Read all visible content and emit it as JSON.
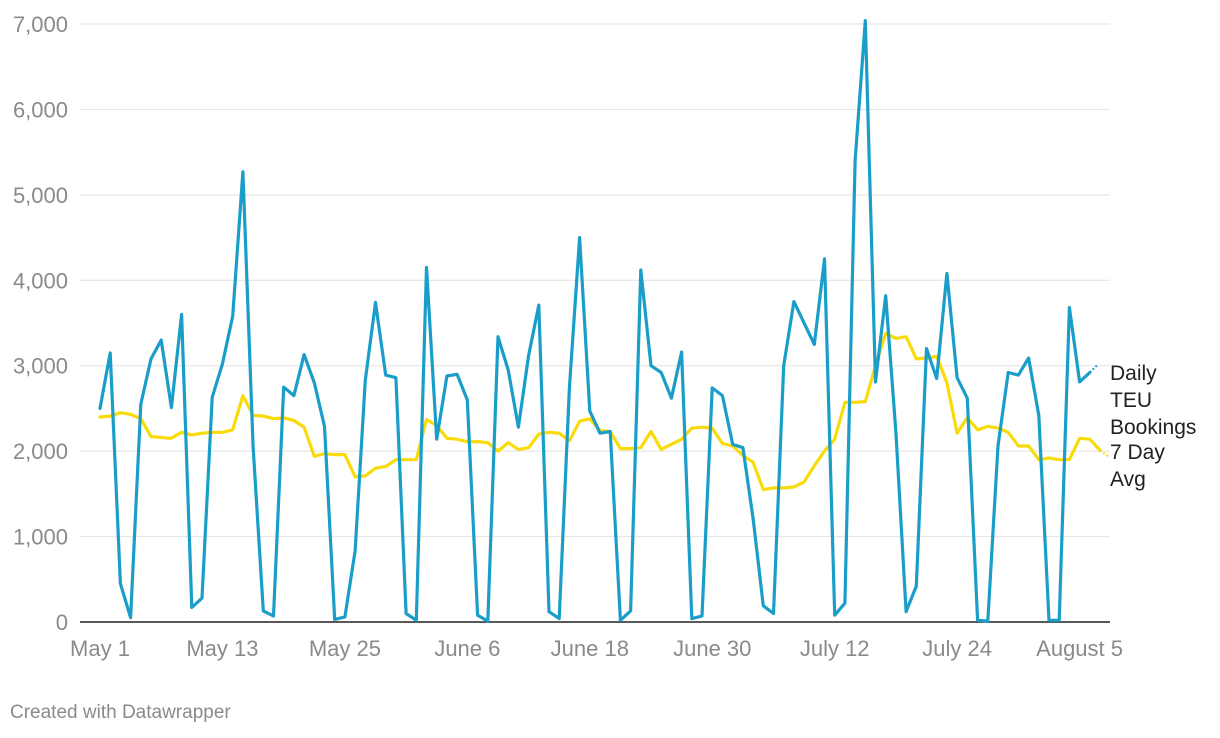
{
  "footer": {
    "credit": "Created with Datawrapper"
  },
  "colors": {
    "daily": "#1a9ec9",
    "avg": "#fadb0a",
    "grid": "#e2e2e2",
    "axis_text": "#8a8a8a"
  },
  "chart_data": {
    "type": "line",
    "title": "",
    "xlabel": "",
    "ylabel": "",
    "ylim": [
      0,
      7000
    ],
    "grid": true,
    "legend_placement": "right-end-of-lines",
    "y_ticks": [
      {
        "value": 0,
        "label": "0"
      },
      {
        "value": 1000,
        "label": "1,000"
      },
      {
        "value": 2000,
        "label": "2,000"
      },
      {
        "value": 3000,
        "label": "3,000"
      },
      {
        "value": 4000,
        "label": "4,000"
      },
      {
        "value": 5000,
        "label": "5,000"
      },
      {
        "value": 6000,
        "label": "6,000"
      },
      {
        "value": 7000,
        "label": "7,000"
      }
    ],
    "x_ticks": [
      {
        "day": 0,
        "label": "May 1"
      },
      {
        "day": 12,
        "label": "May 13"
      },
      {
        "day": 24,
        "label": "May 25"
      },
      {
        "day": 36,
        "label": "June 6"
      },
      {
        "day": 48,
        "label": "June 18"
      },
      {
        "day": 60,
        "label": "June 30"
      },
      {
        "day": 72,
        "label": "July 12"
      },
      {
        "day": 84,
        "label": "July 24"
      },
      {
        "day": 96,
        "label": "August 5"
      }
    ],
    "x_range_days": [
      0,
      98
    ],
    "series": [
      {
        "name": "Daily TEU Bookings",
        "legend_lines": [
          "Daily",
          "TEU",
          "Bookings"
        ],
        "color_key": "daily",
        "values": [
          2500,
          3150,
          450,
          50,
          2550,
          3080,
          3300,
          2510,
          3600,
          170,
          280,
          2630,
          3020,
          3580,
          5270,
          2050,
          130,
          70,
          2750,
          2650,
          3130,
          2800,
          2290,
          30,
          60,
          830,
          2830,
          3740,
          2890,
          2860,
          100,
          20,
          4150,
          2140,
          2880,
          2900,
          2600,
          80,
          10,
          3340,
          2950,
          2280,
          3120,
          3710,
          120,
          40,
          2740,
          4500,
          2470,
          2210,
          2230,
          20,
          130,
          4120,
          3000,
          2920,
          2620,
          3160,
          40,
          70,
          2740,
          2650,
          2080,
          2040,
          1210,
          190,
          100,
          3000,
          3750,
          3500,
          3250,
          4250,
          80,
          220,
          5400,
          7040,
          2810,
          3820,
          2220,
          120,
          420,
          3200,
          2850,
          4080,
          2860,
          2620,
          20,
          10,
          2060,
          2920,
          2890,
          3090,
          2420,
          20,
          20,
          3680,
          2810,
          2920
        ]
      },
      {
        "name": "7 Day Avg",
        "legend_lines": [
          "7 Day",
          "Avg"
        ],
        "color_key": "avg",
        "values": [
          2400,
          2410,
          2450,
          2430,
          2380,
          2170,
          2160,
          2150,
          2220,
          2190,
          2210,
          2220,
          2220,
          2250,
          2650,
          2420,
          2410,
          2380,
          2390,
          2360,
          2280,
          1940,
          1970,
          1960,
          1960,
          1700,
          1710,
          1800,
          1820,
          1900,
          1900,
          1900,
          2370,
          2300,
          2150,
          2140,
          2110,
          2110,
          2100,
          2000,
          2100,
          2020,
          2040,
          2200,
          2220,
          2210,
          2120,
          2350,
          2380,
          2240,
          2230,
          2030,
          2030,
          2040,
          2230,
          2020,
          2080,
          2140,
          2270,
          2280,
          2270,
          2090,
          2060,
          1950,
          1870,
          1550,
          1570,
          1570,
          1580,
          1640,
          1830,
          2000,
          2140,
          2570,
          2570,
          2580,
          3000,
          3380,
          3320,
          3340,
          3080,
          3090,
          3110,
          2800,
          2210,
          2390,
          2250,
          2290,
          2270,
          2220,
          2060,
          2060,
          1900,
          1920,
          1900,
          1900,
          2150,
          2140,
          2010
        ]
      }
    ]
  }
}
